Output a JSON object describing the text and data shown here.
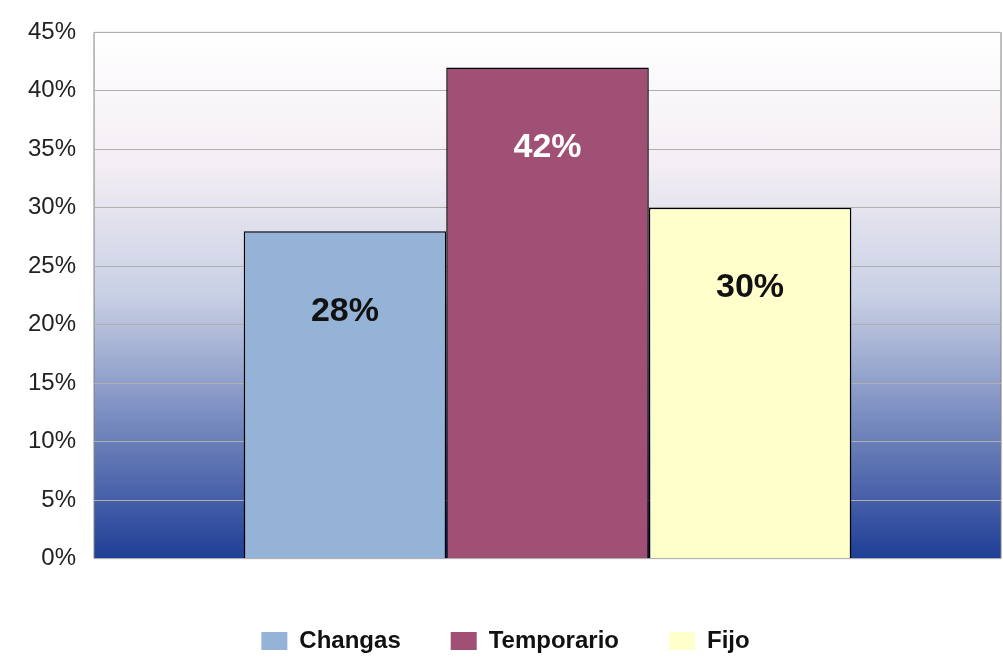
{
  "chart_data": {
    "type": "bar",
    "categories": [
      null
    ],
    "series": [
      {
        "name": "Changas",
        "color": "#95b3d7",
        "values": [
          28
        ],
        "value_labels": [
          "28%"
        ]
      },
      {
        "name": "Temporario",
        "color": "#a05075",
        "values": [
          42
        ],
        "value_labels": [
          "42%"
        ]
      },
      {
        "name": "Fijo",
        "color": "#ffffcc",
        "values": [
          30
        ],
        "value_labels": [
          "30%"
        ]
      }
    ],
    "ylim": [
      0,
      45
    ],
    "yticks": [
      {
        "value": 0,
        "label": "0%"
      },
      {
        "value": 5,
        "label": "5%"
      },
      {
        "value": 10,
        "label": "10%"
      },
      {
        "value": 15,
        "label": "15%"
      },
      {
        "value": 20,
        "label": "20%"
      },
      {
        "value": 25,
        "label": "25%"
      },
      {
        "value": 30,
        "label": "30%"
      },
      {
        "value": 35,
        "label": "35%"
      },
      {
        "value": 40,
        "label": "40%"
      },
      {
        "value": 45,
        "label": "45%"
      }
    ],
    "grid": "y",
    "legend": "bottom"
  }
}
